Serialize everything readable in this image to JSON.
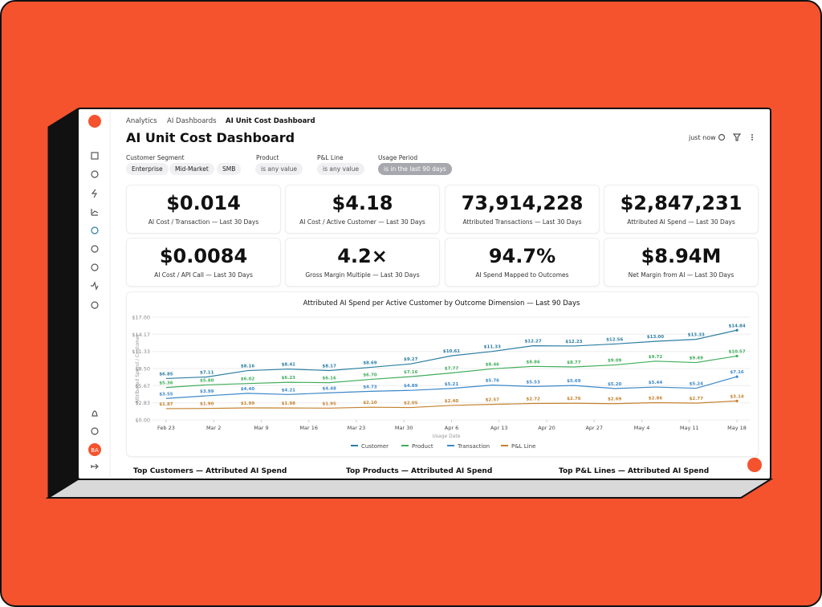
{
  "breadcrumb": [
    "Analytics",
    "AI Dashboards",
    "AI Unit Cost Dashboard"
  ],
  "title": "AI Unit Cost Dashboard",
  "status": "just now",
  "filters": [
    {
      "label": "Customer Segment",
      "chips": [
        "Enterprise",
        "Mid-Market",
        "SMB"
      ]
    },
    {
      "label": "Product",
      "chips": [
        "is any value"
      ]
    },
    {
      "label": "P&L Line",
      "chips": [
        "is any value"
      ]
    },
    {
      "label": "Usage Period",
      "chips": [
        "is in the last 90 days"
      ]
    }
  ],
  "kpis": [
    {
      "value": "$0.014",
      "label": "AI Cost / Transaction — Last 30 Days"
    },
    {
      "value": "$4.18",
      "label": "AI Cost / Active Customer — Last 30 Days"
    },
    {
      "value": "73,914,228",
      "label": "Attributed Transactions — Last 30 Days"
    },
    {
      "value": "$2,847,231",
      "label": "Attributed AI Spend — Last 30 Days"
    },
    {
      "value": "$0.0084",
      "label": "AI Cost / API Call — Last 30 Days"
    },
    {
      "value": "4.2×",
      "label": "Gross Margin Multiple — Last 30 Days"
    },
    {
      "value": "94.7%",
      "label": "AI Spend Mapped to Outcomes"
    },
    {
      "value": "$8.94M",
      "label": "Net Margin from AI — Last 30 Days"
    }
  ],
  "chart": {
    "type": "line",
    "title": "Attributed AI Spend per Active Customer by Outcome Dimension — Last 90 Days",
    "x_label": "Usage Date",
    "y_label": "Attributed Spend / Customer",
    "x": [
      0,
      6,
      12,
      18,
      24,
      30,
      36,
      42,
      48,
      54,
      60,
      66,
      72,
      78,
      84
    ],
    "xlim": [
      -2,
      86
    ],
    "xticks": [
      {
        "value": 0,
        "label": "Feb 23"
      },
      {
        "value": 7,
        "label": "Mar 2"
      },
      {
        "value": 14,
        "label": "Mar 9"
      },
      {
        "value": 21,
        "label": "Mar 16"
      },
      {
        "value": 28,
        "label": "Mar 23"
      },
      {
        "value": 35,
        "label": "Mar 30"
      },
      {
        "value": 42,
        "label": "Apr 6"
      },
      {
        "value": 49,
        "label": "Apr 13"
      },
      {
        "value": 56,
        "label": "Apr 20"
      },
      {
        "value": 63,
        "label": "Apr 27"
      },
      {
        "value": 70,
        "label": "May 4"
      },
      {
        "value": 77,
        "label": "May 11"
      },
      {
        "value": 84,
        "label": "May 18"
      }
    ],
    "ylim": [
      0,
      17
    ],
    "yticks": [
      {
        "value": 0,
        "label": "$0.00"
      },
      {
        "value": 2.83,
        "label": "$2.83"
      },
      {
        "value": 5.67,
        "label": "$5.67"
      },
      {
        "value": 8.5,
        "label": "$8.50"
      },
      {
        "value": 11.33,
        "label": "$11.33"
      },
      {
        "value": 14.17,
        "label": "$14.17"
      },
      {
        "value": 17,
        "label": "$17.00"
      }
    ],
    "grid": true,
    "series": [
      {
        "name": "Customer",
        "color": "#2c7ea3",
        "values": [
          6.85,
          7.11,
          8.16,
          8.41,
          8.17,
          8.69,
          9.27,
          10.61,
          11.33,
          12.27,
          12.23,
          12.56,
          13.0,
          13.33,
          14.84
        ],
        "value_labels": [
          "$6.85",
          "$7.11",
          "$8.16",
          "$8.41",
          "$8.17",
          "$8.69",
          "$9.27",
          "$10.61",
          "$11.33",
          "$12.27",
          "$12.23",
          "$12.56",
          "$13.00",
          "$13.33",
          "$14.84"
        ]
      },
      {
        "name": "Product",
        "color": "#41ad5b",
        "values": [
          5.36,
          5.8,
          6.02,
          6.23,
          6.16,
          6.7,
          7.16,
          7.77,
          8.46,
          8.86,
          8.77,
          9.09,
          9.72,
          9.49,
          10.57
        ],
        "value_labels": [
          "$5.36",
          "$5.80",
          "$6.02",
          "$6.23",
          "$6.16",
          "$6.70",
          "$7.16",
          "$7.77",
          "$8.46",
          "$8.86",
          "$8.77",
          "$9.09",
          "$9.72",
          "$9.49",
          "$10.57"
        ]
      },
      {
        "name": "Transaction",
        "color": "#3d88c8",
        "values": [
          3.55,
          3.99,
          4.4,
          4.21,
          4.48,
          4.73,
          4.89,
          5.21,
          5.76,
          5.53,
          5.69,
          5.2,
          5.44,
          5.24,
          7.16
        ],
        "value_labels": [
          "$3.55",
          "$3.99",
          "$4.40",
          "$4.21",
          "$4.48",
          "$4.73",
          "$4.89",
          "$5.21",
          "$5.76",
          "$5.53",
          "$5.69",
          "$5.20",
          "$5.44",
          "$5.24",
          "$7.16"
        ]
      },
      {
        "name": "P&L Line",
        "color": "#c4822f",
        "values": [
          1.87,
          1.9,
          1.99,
          1.98,
          1.95,
          2.1,
          2.05,
          2.4,
          2.57,
          2.72,
          2.76,
          2.69,
          2.86,
          2.77,
          3.14
        ],
        "value_labels": [
          "$1.87",
          "$1.90",
          "$1.99",
          "$1.98",
          "$1.95",
          "$2.10",
          "$2.05",
          "$2.40",
          "$2.57",
          "$2.72",
          "$2.76",
          "$2.69",
          "$2.86",
          "$2.77",
          "$3.14"
        ]
      }
    ]
  },
  "sections": [
    "Top Customers — Attributed AI Spend",
    "Top Products — Attributed AI Spend",
    "Top P&L Lines — Attributed AI Spend"
  ],
  "avatar": "BA"
}
